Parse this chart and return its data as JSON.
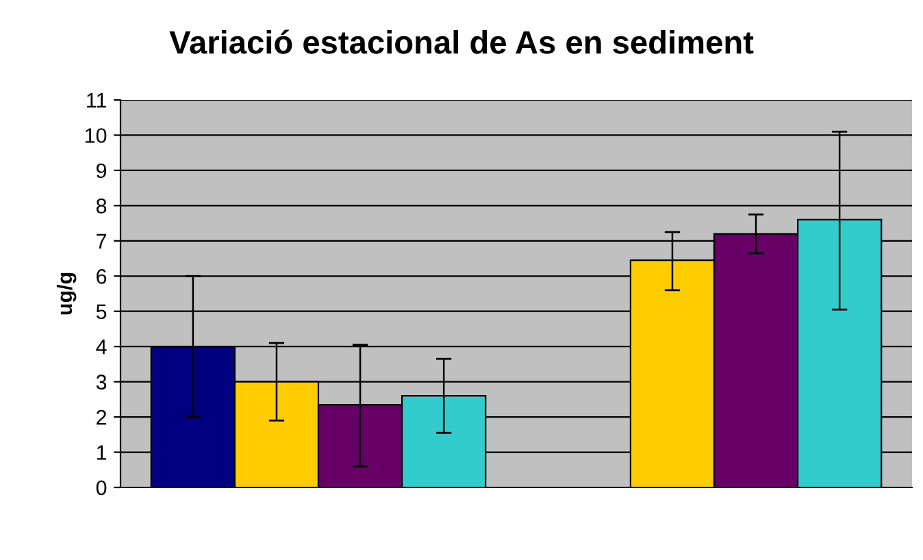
{
  "chart_data": {
    "type": "bar",
    "title": "Variació estacional de As en sediment",
    "ylabel": "ug/g",
    "categories": [
      null,
      null
    ],
    "series": [
      {
        "color": "#000080",
        "values": [
          4.0,
          null
        ],
        "errors": [
          [
            2.0,
            6.0
          ],
          null
        ]
      },
      {
        "color": "#ffcc00",
        "values": [
          3.0,
          6.45
        ],
        "errors": [
          [
            1.9,
            4.1
          ],
          [
            5.6,
            7.25
          ]
        ]
      },
      {
        "color": "#660066",
        "values": [
          2.35,
          7.2
        ],
        "errors": [
          [
            0.6,
            4.05
          ],
          [
            6.65,
            7.75
          ]
        ]
      },
      {
        "color": "#33cccc",
        "values": [
          2.6,
          7.6
        ],
        "errors": [
          [
            1.55,
            3.65
          ],
          [
            5.05,
            10.1
          ]
        ]
      }
    ],
    "ylim": [
      0,
      11
    ],
    "yticks": [
      0,
      1,
      2,
      3,
      4,
      5,
      6,
      7,
      8,
      9,
      10,
      11
    ],
    "grid": "y",
    "legend": false
  }
}
